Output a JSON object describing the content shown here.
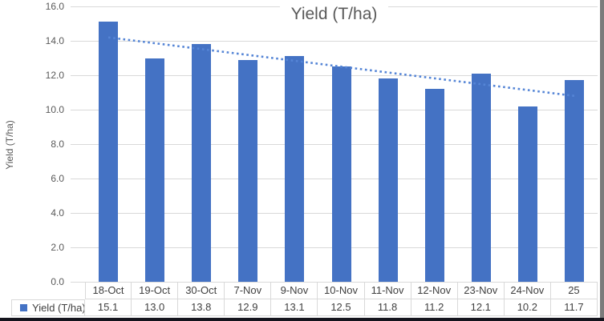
{
  "chart_data": {
    "type": "bar",
    "title": "Yield (T/ha)",
    "ylabel": "Yield (T/ha)",
    "categories": [
      "18-Oct",
      "19-Oct",
      "30-Oct",
      "7-Nov",
      "9-Nov",
      "10-Nov",
      "11-Nov",
      "12-Nov",
      "23-Nov",
      "24-Nov",
      "25"
    ],
    "values": [
      15.1,
      13.0,
      13.8,
      12.9,
      13.1,
      12.5,
      11.8,
      11.2,
      12.1,
      10.2,
      11.7
    ],
    "value_labels": [
      "15.1",
      "13.0",
      "13.8",
      "12.9",
      "13.1",
      "12.5",
      "11.8",
      "11.2",
      "12.1",
      "10.2",
      "11.7"
    ],
    "series_name": "Yield (T/ha)",
    "legend_label": "Yield (T/ha)",
    "ylim": [
      0,
      16
    ],
    "ytick_labels": [
      "16.0",
      "14.0",
      "12.0",
      "10.0",
      "8.0",
      "6.0",
      "4.0",
      "2.0",
      "0.0"
    ],
    "grid": true,
    "legend_position": "bottom-table",
    "bar_color": "#4472C4",
    "trendline": {
      "style": "dotted",
      "color": "#5585d6",
      "start_value": 14.2,
      "end_value": 10.8
    }
  }
}
